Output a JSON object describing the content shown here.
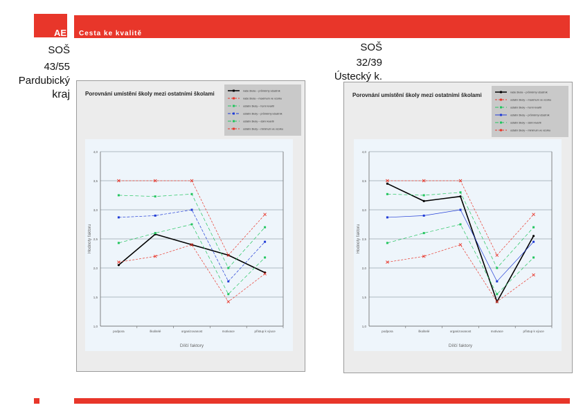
{
  "header": {
    "logo_text": "AE",
    "tagline": "Cesta ke kvalitě",
    "brand_color": "#e8362a"
  },
  "left_school": {
    "type": "SOŠ",
    "rank": "43/55",
    "region_line1": "Pardubický",
    "region_line2": "kraj"
  },
  "right_school": {
    "type": "SOŠ",
    "rank": "32/39",
    "region": "Ústecký k."
  },
  "chart_data": [
    {
      "type": "line",
      "title": "Porovnání umístění školy mezi ostatními školami",
      "xlabel": "Dílčí faktory",
      "ylabel": "Hodnoty faktoru",
      "categories": [
        "podpora",
        "školitelé",
        "organizovanost",
        "motivace",
        "přístup k výuce"
      ],
      "yticks": [
        "1,0",
        "1,5",
        "2,0",
        "2,5",
        "3,0",
        "3,5",
        "4,0"
      ],
      "ylim": [
        1.0,
        4.0
      ],
      "legend": [
        "naše škola – průměrný účastník",
        "naše škola – maximum ve vzorku",
        "ostatní školy – horní kvartil",
        "ostatní školy – průměrný účastník",
        "ostatní školy – dolní kvartil",
        "ostatní školy – minimum ve vzorku"
      ],
      "series": [
        {
          "name": "škola",
          "color": "#000000",
          "dash": "",
          "values": [
            2.05,
            2.58,
            2.4,
            2.22,
            1.92
          ]
        },
        {
          "name": "max",
          "color": "#e8362a",
          "dash": "3,2",
          "values": [
            3.5,
            3.5,
            3.5,
            2.22,
            2.92
          ]
        },
        {
          "name": "hq",
          "color": "#22c55e",
          "dash": "5,3",
          "values": [
            3.25,
            3.23,
            3.27,
            2.0,
            2.7
          ]
        },
        {
          "name": "avg",
          "color": "#1f3bd6",
          "dash": "4,2",
          "values": [
            2.87,
            2.9,
            3.0,
            1.77,
            2.45
          ]
        },
        {
          "name": "lq",
          "color": "#22c55e",
          "dash": "5,3",
          "values": [
            2.43,
            2.6,
            2.75,
            1.55,
            2.18
          ]
        },
        {
          "name": "min",
          "color": "#e8362a",
          "dash": "3,2",
          "values": [
            2.1,
            2.2,
            2.4,
            1.42,
            1.9
          ]
        }
      ]
    },
    {
      "type": "line",
      "title": "Porovnání umístění školy mezi ostatními školami",
      "xlabel": "Dílčí faktory",
      "ylabel": "Hodnoty faktoru",
      "categories": [
        "podpora",
        "školitelé",
        "organizovanost",
        "motivace",
        "přístup k výuce"
      ],
      "yticks": [
        "1,0",
        "1,5",
        "2,0",
        "2,5",
        "3,0",
        "3,5",
        "4,0"
      ],
      "ylim": [
        1.0,
        4.0
      ],
      "legend": [
        "naše škola – průměrný účastník",
        "ostatní školy – maximum ve vzorku",
        "ostatní školy – horní kvartil",
        "ostatní školy – průměrný účastník",
        "ostatní školy – dolní kvartil",
        "ostatní školy – minimum ve vzorku"
      ],
      "series": [
        {
          "name": "škola",
          "color": "#000000",
          "dash": "",
          "values": [
            3.45,
            3.15,
            3.23,
            1.42,
            2.55
          ]
        },
        {
          "name": "max",
          "color": "#e8362a",
          "dash": "3,2",
          "values": [
            3.5,
            3.5,
            3.5,
            2.22,
            2.92
          ]
        },
        {
          "name": "hq",
          "color": "#22c55e",
          "dash": "5,3",
          "values": [
            3.27,
            3.25,
            3.3,
            2.0,
            2.7
          ]
        },
        {
          "name": "avg",
          "color": "#1f3bd6",
          "dash": "",
          "values": [
            2.87,
            2.9,
            3.0,
            1.77,
            2.45
          ]
        },
        {
          "name": "lq",
          "color": "#22c55e",
          "dash": "5,3",
          "values": [
            2.43,
            2.6,
            2.75,
            1.55,
            2.18
          ]
        },
        {
          "name": "min",
          "color": "#e8362a",
          "dash": "3,2",
          "values": [
            2.1,
            2.2,
            2.4,
            1.42,
            1.88
          ]
        }
      ]
    }
  ]
}
